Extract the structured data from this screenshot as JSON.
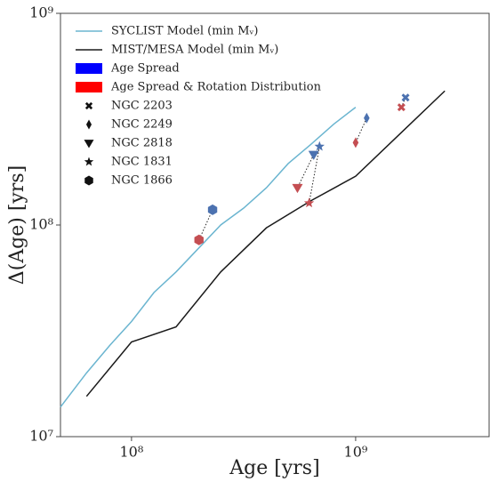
{
  "chart_data": {
    "type": "line",
    "xlabel": "Age [yrs]",
    "ylabel": "Δ(Age) [yrs]",
    "xscale": "log",
    "yscale": "log",
    "xlim": [
      48200000,
      3940000000
    ],
    "ylim": [
      10000000,
      1000000000
    ],
    "xticks": [
      {
        "value": 100000000,
        "label": "10⁸"
      },
      {
        "value": 1000000000,
        "label": "10⁹"
      }
    ],
    "yticks": [
      {
        "value": 10000000,
        "label": "10⁷"
      },
      {
        "value": 100000000,
        "label": "10⁸"
      },
      {
        "value": 1000000000,
        "label": "10⁹"
      }
    ],
    "series": [
      {
        "name": "SYCLIST Model (min Mᵥ)",
        "color": "#6bb5d0",
        "x": [
          48200000,
          63000000,
          80000000,
          100000000,
          126000000,
          158000000,
          200000000,
          250000000,
          316000000,
          400000000,
          500000000,
          630000000,
          800000000,
          1000000000
        ],
        "values": [
          13800000,
          20000000,
          27000000,
          35000000,
          48000000,
          60000000,
          78000000,
          100000000,
          120000000,
          150000000,
          195000000,
          240000000,
          300000000,
          360000000
        ]
      },
      {
        "name": "MIST/MESA Model (min Mᵥ)",
        "color": "#1a1a1a",
        "x": [
          63000000,
          100000000,
          158000000,
          250000000,
          400000000,
          630000000,
          1000000000,
          1580000000,
          2500000000
        ],
        "values": [
          15500000,
          28000000,
          33000000,
          60000000,
          97000000,
          130000000,
          170000000,
          270000000,
          430000000
        ]
      }
    ],
    "groups": [
      {
        "name": "Age Spread",
        "color": "#0000ff",
        "marker_color": "#4c72b0"
      },
      {
        "name": "Age Spread & Rotation Distribution",
        "color": "#ff0000",
        "marker_color": "#c44e52"
      }
    ],
    "clusters": [
      {
        "name": "NGC 2203",
        "marker": "x",
        "x": [
          1670000000,
          1600000000
        ],
        "values": [
          400000000,
          360000000
        ]
      },
      {
        "name": "NGC 2249",
        "marker": "diamond",
        "x": [
          1120000000,
          1000000000
        ],
        "values": [
          320000000,
          245000000
        ]
      },
      {
        "name": "NGC 2818",
        "marker": "triangle",
        "x": [
          650000000,
          550000000
        ],
        "values": [
          215000000,
          150000000
        ]
      },
      {
        "name": "NGC 1831",
        "marker": "star",
        "x": [
          690000000,
          620000000
        ],
        "values": [
          235000000,
          127000000
        ]
      },
      {
        "name": "NGC 1866",
        "marker": "hexagon",
        "x": [
          230000000,
          200000000
        ],
        "values": [
          118000000,
          85000000
        ]
      }
    ]
  }
}
